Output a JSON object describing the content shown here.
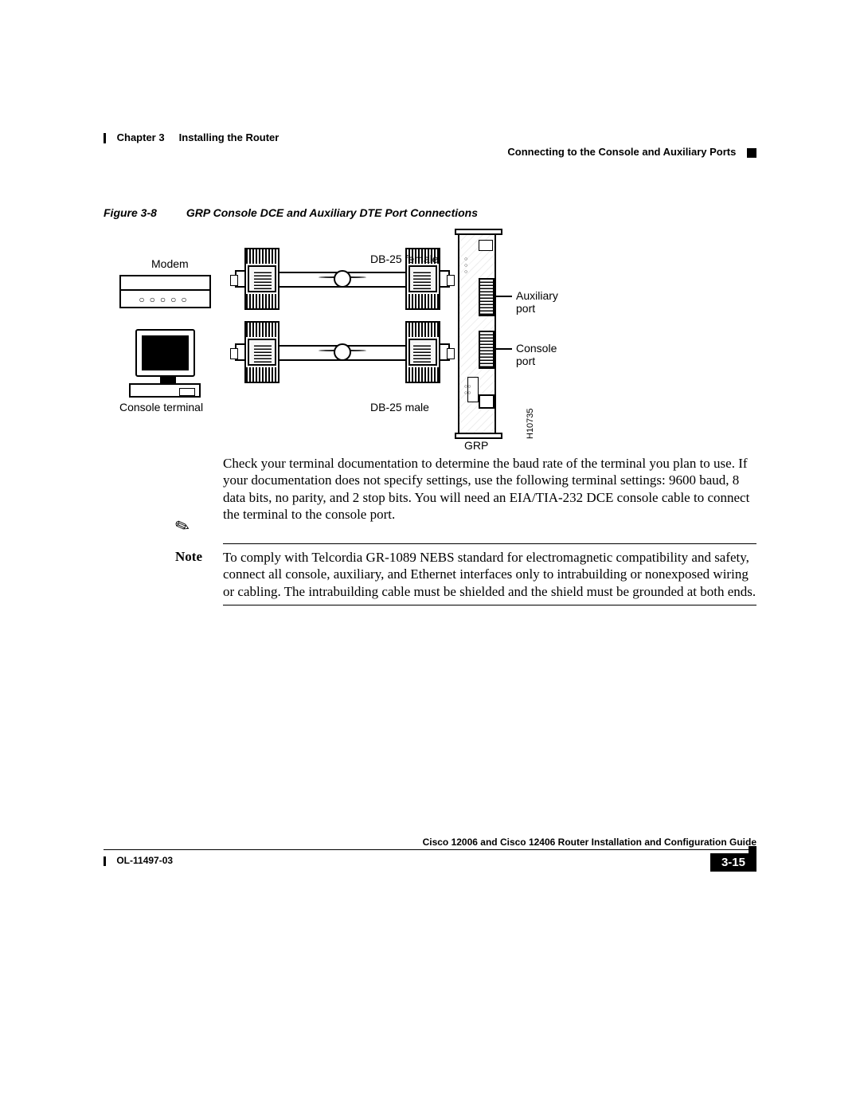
{
  "header": {
    "chapter_label": "Chapter 3",
    "chapter_title": "Installing the Router",
    "section_title": "Connecting to the Console and Auxiliary Ports"
  },
  "figure": {
    "number": "Figure 3-8",
    "title": "GRP Console DCE and Auxiliary DTE Port Connections",
    "labels": {
      "modem": "Modem",
      "console_terminal": "Console terminal",
      "db25_female": "DB-25 female",
      "db25_male": "DB-25 male",
      "auxiliary_port": "Auxiliary port",
      "console_port": "Console port",
      "grp": "GRP",
      "hnum": "H10735"
    }
  },
  "paragraph": "Check your terminal documentation to determine the baud rate of the terminal you plan to use. If your documentation does not specify settings, use the following terminal settings: 9600 baud, 8 data bits, no parity, and 2 stop bits. You will need an EIA/TIA-232 DCE console cable to connect the terminal to the console port.",
  "note": {
    "label": "Note",
    "text": "To comply with Telcordia GR-1089 NEBS standard for electromagnetic compatibility and safety, connect all console, auxiliary, and Ethernet interfaces only to intrabuilding or nonexposed wiring or cabling. The intrabuilding cable must be shielded and the shield must be grounded at both ends."
  },
  "footer": {
    "guide_title": "Cisco 12006 and Cisco 12406 Router Installation and Configuration Guide",
    "doc_id": "OL-11497-03",
    "page": "3-15"
  },
  "colors": {
    "text": "#000000",
    "background": "#ffffff"
  },
  "typography": {
    "body_family": "Times New Roman",
    "body_size_pt": 11,
    "label_family": "Arial",
    "heading_weight": "bold"
  }
}
